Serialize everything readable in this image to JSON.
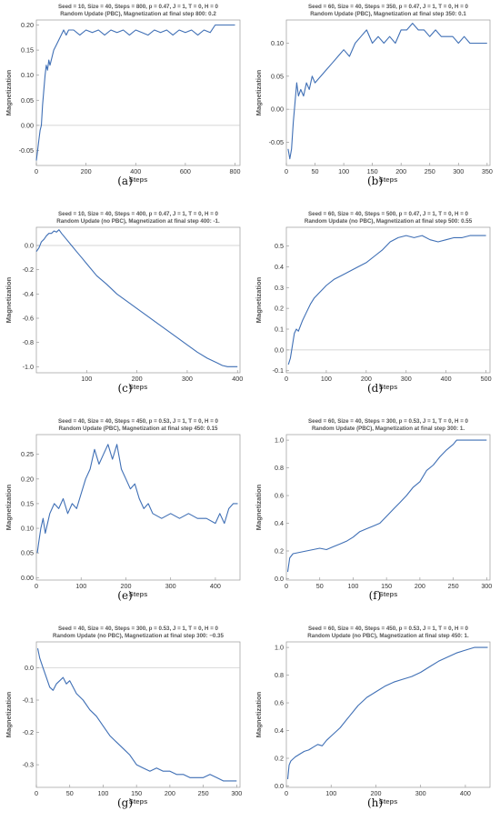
{
  "figure": {
    "captions": [
      "(a)",
      "(b)",
      "(c)",
      "(d)",
      "(e)",
      "(f)",
      "(g)",
      "(h)"
    ]
  },
  "chart_data": [
    {
      "type": "line",
      "title": "Seed = 10, Size = 40, Steps = 800, p = 0.47, J = 1, T = 0, H = 0",
      "subtitle": "Random Update (PBC), Magnetization at final step 800: 0.2",
      "xlabel": "Steps",
      "ylabel": "Magnetization",
      "xlim": [
        0,
        820
      ],
      "ylim": [
        -0.08,
        0.21
      ],
      "xticks": [
        0,
        200,
        400,
        600,
        800
      ],
      "yticks": [
        -0.05,
        0.0,
        0.05,
        0.1,
        0.15,
        0.2
      ],
      "ytick_labels": [
        "-0.05",
        "0.00",
        "0.05",
        "0.10",
        "0.15",
        "0.20"
      ],
      "reference_line": 0,
      "color": "#3f6fb5",
      "series": [
        {
          "x": [
            0,
            5,
            10,
            15,
            20,
            25,
            30,
            35,
            40,
            45,
            50,
            55,
            60,
            70,
            80,
            90,
            100,
            110,
            120,
            130,
            150,
            175,
            200,
            225,
            250,
            275,
            300,
            325,
            350,
            375,
            400,
            425,
            450,
            475,
            500,
            525,
            550,
            575,
            600,
            625,
            650,
            675,
            700,
            720,
            740,
            760,
            780,
            800
          ],
          "y": [
            -0.07,
            -0.05,
            -0.03,
            -0.01,
            0.0,
            0.04,
            0.07,
            0.1,
            0.12,
            0.11,
            0.13,
            0.12,
            0.13,
            0.15,
            0.16,
            0.17,
            0.18,
            0.19,
            0.18,
            0.19,
            0.19,
            0.18,
            0.19,
            0.185,
            0.19,
            0.18,
            0.19,
            0.185,
            0.19,
            0.18,
            0.19,
            0.185,
            0.18,
            0.19,
            0.185,
            0.19,
            0.18,
            0.19,
            0.185,
            0.19,
            0.18,
            0.19,
            0.185,
            0.2,
            0.2,
            0.2,
            0.2,
            0.2
          ]
        }
      ]
    },
    {
      "type": "line",
      "title": "Seed = 60, Size = 40, Steps = 350, p = 0.47, J = 1, T = 0, H = 0",
      "subtitle": "Random Update (PBC), Magnetization at final step 350: 0.1",
      "xlabel": "Steps",
      "ylabel": "Magnetization",
      "xlim": [
        0,
        355
      ],
      "ylim": [
        -0.085,
        0.135
      ],
      "xticks": [
        0,
        50,
        100,
        150,
        200,
        250,
        300,
        350
      ],
      "yticks": [
        -0.05,
        0.0,
        0.05,
        0.1
      ],
      "ytick_labels": [
        "-0.05",
        "0.00",
        "0.05",
        "0.10"
      ],
      "reference_line": 0,
      "color": "#3f6fb5",
      "series": [
        {
          "x": [
            3,
            6,
            9,
            12,
            15,
            18,
            21,
            25,
            30,
            35,
            40,
            45,
            50,
            60,
            70,
            80,
            90,
            100,
            110,
            120,
            130,
            140,
            150,
            160,
            170,
            180,
            190,
            200,
            210,
            220,
            230,
            240,
            250,
            260,
            270,
            280,
            290,
            300,
            310,
            320,
            330,
            340,
            350
          ],
          "y": [
            -0.06,
            -0.075,
            -0.06,
            -0.02,
            0.01,
            0.04,
            0.02,
            0.03,
            0.02,
            0.04,
            0.03,
            0.05,
            0.04,
            0.05,
            0.06,
            0.07,
            0.08,
            0.09,
            0.08,
            0.1,
            0.11,
            0.12,
            0.1,
            0.11,
            0.1,
            0.11,
            0.1,
            0.12,
            0.12,
            0.13,
            0.12,
            0.12,
            0.11,
            0.12,
            0.11,
            0.11,
            0.11,
            0.1,
            0.11,
            0.1,
            0.1,
            0.1,
            0.1
          ]
        }
      ]
    },
    {
      "type": "line",
      "title": "Seed = 10, Size = 40, Steps = 400, p = 0.47, J = 1, T = 0, H = 0",
      "subtitle": "Random Update (no PBC), Magnetization at final step 400: -1.",
      "xlabel": "Steps",
      "ylabel": "Magnetization",
      "xlim": [
        0,
        405
      ],
      "ylim": [
        -1.05,
        0.15
      ],
      "xticks": [
        100,
        200,
        300,
        400
      ],
      "yticks": [
        -1.0,
        -0.8,
        -0.6,
        -0.4,
        -0.2,
        0.0
      ],
      "ytick_labels": [
        "-1.0",
        "-0.8",
        "-0.6",
        "-0.4",
        "-0.2",
        "0.0"
      ],
      "reference_line": 0,
      "color": "#3f6fb5",
      "series": [
        {
          "x": [
            0,
            5,
            10,
            15,
            20,
            25,
            30,
            35,
            40,
            45,
            50,
            60,
            70,
            80,
            90,
            100,
            120,
            140,
            160,
            180,
            200,
            220,
            240,
            260,
            280,
            300,
            320,
            340,
            360,
            370,
            380,
            390,
            400
          ],
          "y": [
            -0.05,
            -0.02,
            0.03,
            0.05,
            0.08,
            0.1,
            0.1,
            0.12,
            0.11,
            0.13,
            0.1,
            0.05,
            0.0,
            -0.05,
            -0.1,
            -0.15,
            -0.25,
            -0.32,
            -0.4,
            -0.46,
            -0.52,
            -0.58,
            -0.64,
            -0.7,
            -0.76,
            -0.82,
            -0.88,
            -0.93,
            -0.97,
            -0.99,
            -1.0,
            -1.0,
            -1.0
          ]
        }
      ]
    },
    {
      "type": "line",
      "title": "Seed = 60, Size = 40, Steps = 500, p = 0.47, J = 1, T = 0, H = 0",
      "subtitle": "Random Update (no PBC), Magnetization at final step 500: 0.55",
      "xlabel": "Steps",
      "ylabel": "Magnetization",
      "xlim": [
        0,
        510
      ],
      "ylim": [
        -0.11,
        0.59
      ],
      "xticks": [
        0,
        100,
        200,
        300,
        400,
        500
      ],
      "yticks": [
        -0.1,
        0.0,
        0.1,
        0.2,
        0.3,
        0.4,
        0.5
      ],
      "ytick_labels": [
        "-0.1",
        "0.0",
        "0.1",
        "0.2",
        "0.3",
        "0.4",
        "0.5"
      ],
      "reference_line": 0,
      "color": "#3f6fb5",
      "series": [
        {
          "x": [
            5,
            10,
            15,
            20,
            25,
            30,
            40,
            50,
            60,
            70,
            80,
            90,
            100,
            120,
            140,
            160,
            180,
            200,
            220,
            240,
            260,
            280,
            300,
            320,
            340,
            360,
            380,
            400,
            420,
            440,
            460,
            480,
            500
          ],
          "y": [
            -0.07,
            -0.04,
            0.02,
            0.08,
            0.1,
            0.09,
            0.14,
            0.18,
            0.22,
            0.25,
            0.27,
            0.29,
            0.31,
            0.34,
            0.36,
            0.38,
            0.4,
            0.42,
            0.45,
            0.48,
            0.52,
            0.54,
            0.55,
            0.54,
            0.55,
            0.53,
            0.52,
            0.53,
            0.54,
            0.54,
            0.55,
            0.55,
            0.55
          ]
        }
      ]
    },
    {
      "type": "line",
      "title": "Seed = 40, Size = 40, Steps = 450, p = 0.53, J = 1, T = 0, H = 0",
      "subtitle": "Random Update (PBC), Magnetization at final step 450: 0.15",
      "xlabel": "Steps",
      "ylabel": "Magnetization",
      "xlim": [
        0,
        455
      ],
      "ylim": [
        -0.005,
        0.29
      ],
      "xticks": [
        0,
        100,
        200,
        300,
        400
      ],
      "yticks": [
        0.0,
        0.05,
        0.1,
        0.15,
        0.2,
        0.25
      ],
      "ytick_labels": [
        "0.00",
        "0.05",
        "0.10",
        "0.15",
        "0.20",
        "0.25"
      ],
      "reference_line": null,
      "color": "#3f6fb5",
      "series": [
        {
          "x": [
            2,
            5,
            10,
            15,
            20,
            30,
            40,
            50,
            60,
            70,
            80,
            90,
            100,
            110,
            120,
            130,
            140,
            150,
            160,
            170,
            180,
            190,
            200,
            210,
            220,
            230,
            240,
            250,
            260,
            280,
            300,
            320,
            340,
            360,
            380,
            400,
            410,
            420,
            430,
            440,
            450
          ],
          "y": [
            0.05,
            0.07,
            0.1,
            0.12,
            0.09,
            0.13,
            0.15,
            0.14,
            0.16,
            0.13,
            0.15,
            0.14,
            0.17,
            0.2,
            0.22,
            0.26,
            0.23,
            0.25,
            0.27,
            0.24,
            0.27,
            0.22,
            0.2,
            0.18,
            0.19,
            0.16,
            0.14,
            0.15,
            0.13,
            0.12,
            0.13,
            0.12,
            0.13,
            0.12,
            0.12,
            0.11,
            0.13,
            0.11,
            0.14,
            0.15,
            0.15
          ]
        }
      ]
    },
    {
      "type": "line",
      "title": "Seed = 60, Size = 40, Steps = 300, p = 0.53, J = 1, T = 0, H = 0",
      "subtitle": "Random Update (PBC), Magnetization at final step 300: 1.",
      "xlabel": "Steps",
      "ylabel": "Magnetization",
      "xlim": [
        0,
        305
      ],
      "ylim": [
        -0.01,
        1.04
      ],
      "xticks": [
        0,
        50,
        100,
        150,
        200,
        250,
        300
      ],
      "yticks": [
        0.0,
        0.2,
        0.4,
        0.6,
        0.8,
        1.0
      ],
      "ytick_labels": [
        "0.0",
        "0.2",
        "0.4",
        "0.6",
        "0.8",
        "1.0"
      ],
      "reference_line": null,
      "color": "#3f6fb5",
      "series": [
        {
          "x": [
            2,
            5,
            10,
            20,
            30,
            40,
            50,
            60,
            70,
            80,
            90,
            100,
            110,
            120,
            130,
            140,
            150,
            160,
            170,
            180,
            190,
            200,
            210,
            220,
            230,
            240,
            250,
            255,
            260,
            270,
            280,
            290,
            300
          ],
          "y": [
            0.05,
            0.15,
            0.18,
            0.19,
            0.2,
            0.21,
            0.22,
            0.21,
            0.23,
            0.25,
            0.27,
            0.3,
            0.34,
            0.36,
            0.38,
            0.4,
            0.45,
            0.5,
            0.55,
            0.6,
            0.66,
            0.7,
            0.78,
            0.82,
            0.88,
            0.93,
            0.97,
            1.0,
            1.0,
            1.0,
            1.0,
            1.0,
            1.0
          ]
        }
      ]
    },
    {
      "type": "line",
      "title": "Seed = 40, Size = 40, Steps = 300, p = 0.53, J = 1, T = 0, H = 0",
      "subtitle": "Random Update (no PBC), Magnetization at final step 300: −0.35",
      "xlabel": "Steps",
      "ylabel": "Magnetization",
      "xlim": [
        0,
        305
      ],
      "ylim": [
        -0.37,
        0.08
      ],
      "xticks": [
        0,
        50,
        100,
        150,
        200,
        250,
        300
      ],
      "yticks": [
        -0.3,
        -0.2,
        -0.1,
        0.0
      ],
      "ytick_labels": [
        "-0.3",
        "-0.2",
        "-0.1",
        "0.0"
      ],
      "reference_line": 0,
      "color": "#3f6fb5",
      "series": [
        {
          "x": [
            2,
            5,
            10,
            15,
            20,
            25,
            30,
            35,
            40,
            45,
            50,
            55,
            60,
            70,
            80,
            90,
            100,
            110,
            120,
            130,
            140,
            150,
            160,
            170,
            180,
            190,
            200,
            210,
            220,
            230,
            240,
            250,
            260,
            270,
            280,
            290,
            300
          ],
          "y": [
            0.06,
            0.03,
            0.0,
            -0.03,
            -0.06,
            -0.07,
            -0.05,
            -0.04,
            -0.03,
            -0.05,
            -0.04,
            -0.06,
            -0.08,
            -0.1,
            -0.13,
            -0.15,
            -0.18,
            -0.21,
            -0.23,
            -0.25,
            -0.27,
            -0.3,
            -0.31,
            -0.32,
            -0.31,
            -0.32,
            -0.32,
            -0.33,
            -0.33,
            -0.34,
            -0.34,
            -0.34,
            -0.33,
            -0.34,
            -0.35,
            -0.35,
            -0.35
          ]
        }
      ]
    },
    {
      "type": "line",
      "title": "Seed = 60, Size = 40, Steps = 450, p = 0.53, J = 1, T = 0, H = 0",
      "subtitle": "Random Update (no PBC), Magnetization at final step 450: 1.",
      "xlabel": "Steps",
      "ylabel": "Magnetization",
      "xlim": [
        0,
        455
      ],
      "ylim": [
        -0.01,
        1.04
      ],
      "xticks": [
        0,
        100,
        200,
        300,
        400
      ],
      "yticks": [
        0.0,
        0.2,
        0.4,
        0.6,
        0.8,
        1.0
      ],
      "ytick_labels": [
        "0.0",
        "0.2",
        "0.4",
        "0.6",
        "0.8",
        "1.0"
      ],
      "reference_line": null,
      "color": "#3f6fb5",
      "series": [
        {
          "x": [
            3,
            6,
            10,
            20,
            30,
            40,
            50,
            60,
            70,
            80,
            90,
            100,
            120,
            140,
            160,
            180,
            200,
            220,
            240,
            260,
            280,
            300,
            320,
            340,
            360,
            380,
            400,
            410,
            420,
            430,
            440,
            450
          ],
          "y": [
            0.05,
            0.15,
            0.18,
            0.21,
            0.23,
            0.25,
            0.26,
            0.28,
            0.3,
            0.29,
            0.33,
            0.36,
            0.42,
            0.5,
            0.58,
            0.64,
            0.68,
            0.72,
            0.75,
            0.77,
            0.79,
            0.82,
            0.86,
            0.9,
            0.93,
            0.96,
            0.98,
            0.99,
            1.0,
            1.0,
            1.0,
            1.0
          ]
        }
      ]
    }
  ]
}
